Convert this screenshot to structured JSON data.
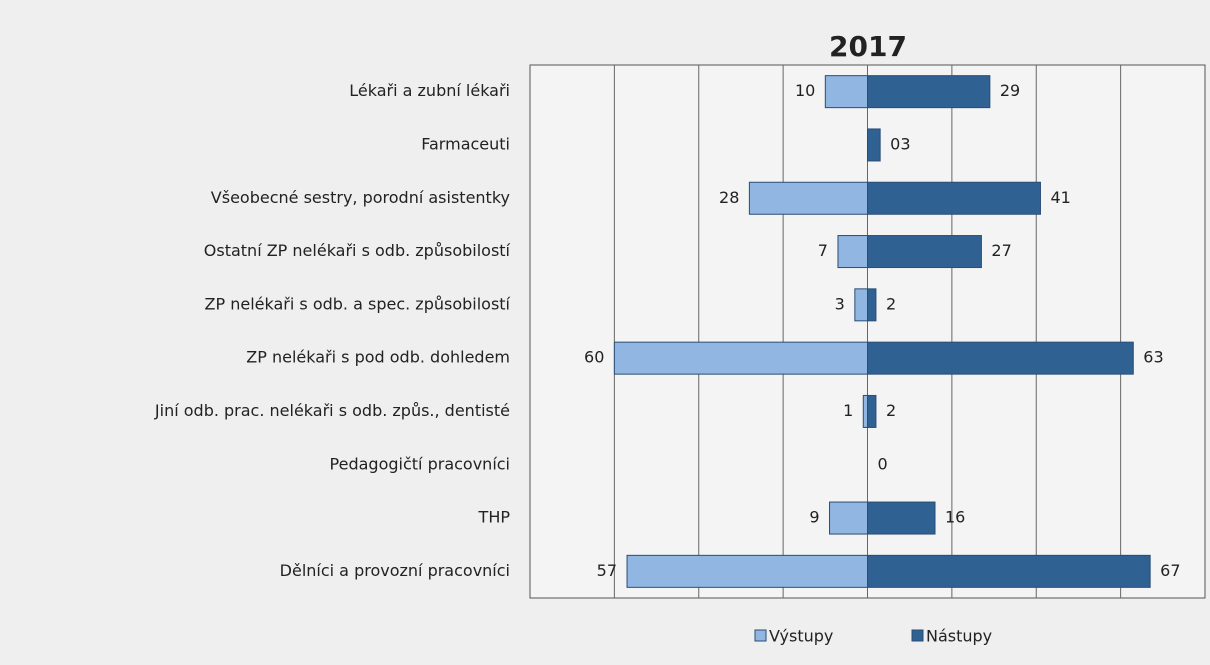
{
  "chart_data": {
    "type": "bar",
    "orientation": "horizontal",
    "title": "2017",
    "categories": [
      "Lékaři a zubní lékaři",
      "Farmaceuti",
      "Všeobecné sestry, porodní asistentky",
      "Ostatní ZP nelékaři s odb. způsobilostí",
      "ZP nelékaři s odb. a spec. způsobilostí",
      "ZP nelékaři s pod odb. dohledem",
      "Jiní odb. prac. nelékaři s odb. způs., dentisté",
      "Pedagogičtí pracovníci",
      "THP",
      "Dělníci a provozní pracovníci"
    ],
    "series": [
      {
        "name": "Výstupy",
        "color": "#92b6e2",
        "side": "left",
        "values": [
          10,
          null,
          28,
          7,
          3,
          60,
          1,
          null,
          9,
          57
        ]
      },
      {
        "name": "Nástupy",
        "color": "#2f6193",
        "side": "right",
        "values": [
          29,
          3,
          41,
          27,
          2,
          63,
          2,
          0,
          16,
          67
        ],
        "value_labels": [
          "29",
          "03",
          "41",
          "27",
          "2",
          "63",
          "2",
          "0",
          "16",
          "67"
        ]
      }
    ],
    "xlim": [
      -80,
      80
    ],
    "xticks": [
      -60,
      -40,
      -20,
      0,
      20,
      40,
      60
    ],
    "grid": true,
    "legend": "bottom"
  }
}
